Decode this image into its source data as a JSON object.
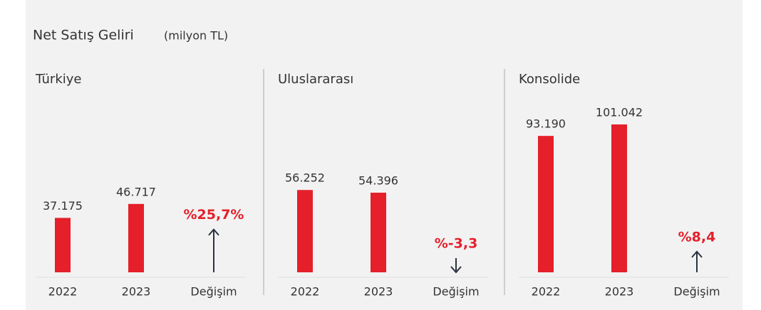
{
  "title": "Net Satış Geliri",
  "subtitle": "(milyon TL)",
  "chart_data": [
    {
      "type": "bar",
      "title": "Türkiye",
      "categories": [
        "2022",
        "2023"
      ],
      "values": [
        37175,
        46717
      ],
      "value_labels": [
        "37.175",
        "46.717"
      ],
      "color": "#e5202a",
      "change_name": "Değişim",
      "change": {
        "value": 25.7,
        "label": "%25,7%"
      }
    },
    {
      "type": "bar",
      "title": "Uluslararası",
      "categories": [
        "2022",
        "2023"
      ],
      "values": [
        56252,
        54396
      ],
      "value_labels": [
        "56.252",
        "54.396"
      ],
      "color": "#e5202a",
      "change_name": "Değişim",
      "change": {
        "value": -3.3,
        "label": "%-3,3"
      }
    },
    {
      "type": "bar",
      "title": "Konsolide",
      "categories": [
        "2022",
        "2023"
      ],
      "values": [
        93190,
        101042
      ],
      "value_labels": [
        "93.190",
        "101.042"
      ],
      "color": "#e5202a",
      "change_name": "Değişim",
      "change": {
        "value": 8.4,
        "label": "%8,4"
      }
    }
  ]
}
